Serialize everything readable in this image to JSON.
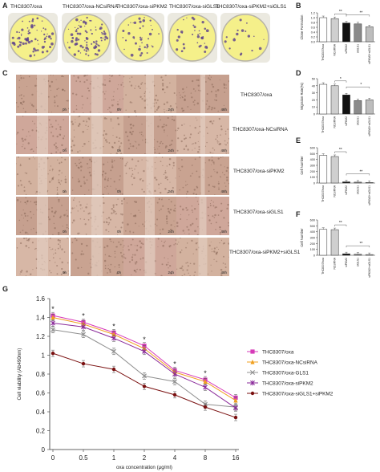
{
  "panel_letters": {
    "A": "A",
    "B": "B",
    "C": "C",
    "D": "D",
    "E": "E",
    "F": "F",
    "G": "G"
  },
  "dish_labels": [
    "THC8307/oxa",
    "THC8307/oxa-NCsiRNA",
    "THC8307/oxa-siPKM2",
    "THC8307/oxa-siGLS1",
    "THC8307/oxa-siPKM2+siGLS1"
  ],
  "scratch_rows": [
    "THC8307/oxa",
    "THC8307/oxa-NCsiRNA",
    "THC8307/oxa-siPKM2",
    "THC8307/oxa-siGLS1",
    "THC8307/oxa-siPKM2+siGLS1"
  ],
  "time_labels": [
    "0h",
    "0h",
    "24h",
    "48h"
  ],
  "colors": {
    "dish_fill": "#f5f08a",
    "dish_dot": "#5a3f8c",
    "scratch_base": "#c9a390",
    "accent": "#d02020"
  },
  "chart_data": [
    {
      "panel": "B",
      "type": "bar",
      "ylabel": "Clone Formation",
      "categories": [
        "THC8307/oxa",
        "NCsiRNA",
        "siPKM2",
        "siGLS1",
        "siPKM2+siGLS1"
      ],
      "values": [
        1.0,
        0.96,
        0.78,
        0.74,
        0.62
      ],
      "ylim": [
        0,
        1.2
      ],
      "yticks": [
        "0.0",
        "0.2",
        "0.4",
        "0.6",
        "0.8",
        "1.0",
        "1.2"
      ],
      "significance": [
        "**",
        "**"
      ]
    },
    {
      "panel": "D",
      "type": "bar",
      "ylabel": "Migration Rate(%)",
      "categories": [
        "THC8307/oxa",
        "NCsiRNA",
        "siPKM2",
        "siGLS1",
        "siPKM2+siGLS1"
      ],
      "values": [
        42,
        40,
        27,
        19,
        20
      ],
      "ylim": [
        0,
        50
      ],
      "yticks": [
        "0",
        "10",
        "20",
        "30",
        "40",
        "50"
      ],
      "significance": [
        "*",
        "*"
      ]
    },
    {
      "panel": "E",
      "type": "bar",
      "ylabel": "Cell Number",
      "categories": [
        "THC8307/oxa",
        "NCsiRNA",
        "siPKM2",
        "siGLS1",
        "siPKM2+siGLS1"
      ],
      "values": [
        470,
        450,
        20,
        15,
        10
      ],
      "ylim": [
        0,
        600
      ],
      "yticks": [
        "0",
        "100",
        "200",
        "300",
        "400",
        "500",
        "600"
      ],
      "significance": [
        "**",
        "**"
      ]
    },
    {
      "panel": "F",
      "type": "bar",
      "ylabel": "Cell Number",
      "categories": [
        "THC8307/oxa",
        "NCsiRNA",
        "siPKM2",
        "siGLS1",
        "siPKM2+siGLS1"
      ],
      "values": [
        440,
        435,
        25,
        18,
        12
      ],
      "ylim": [
        0,
        600
      ],
      "yticks": [
        "0",
        "100",
        "200",
        "300",
        "400",
        "500",
        "600"
      ],
      "significance": [
        "**",
        "**"
      ]
    },
    {
      "panel": "G",
      "type": "line",
      "xlabel": "oxa concentration (μg/ml)",
      "ylabel": "Cell viability (Ab490nm)",
      "x": [
        "0",
        "0.5",
        "1",
        "2",
        "4",
        "8",
        "16"
      ],
      "ylim": [
        0,
        1.6
      ],
      "yticks": [
        "0",
        "0.2",
        "0.4",
        "0.6",
        "0.8",
        "1",
        "1.2",
        "1.4",
        "1.6"
      ],
      "annotations": [
        "*",
        "*",
        "*",
        "*",
        "*",
        "*"
      ],
      "series": [
        {
          "name": "THC8307/oxa",
          "color": "#d63ab8",
          "marker": "square",
          "values": [
            1.42,
            1.35,
            1.24,
            1.1,
            0.84,
            0.74,
            0.55
          ]
        },
        {
          "name": "THC8307/oxa-NCsiRNA",
          "color": "#f0a020",
          "marker": "triangle",
          "values": [
            1.4,
            1.33,
            1.22,
            1.07,
            0.82,
            0.72,
            0.52
          ]
        },
        {
          "name": "THC8307/oxa-GLS1",
          "color": "#909090",
          "marker": "x",
          "values": [
            1.27,
            1.22,
            1.04,
            0.78,
            0.72,
            0.48,
            0.45
          ]
        },
        {
          "name": "THC8307/oxa-siPKM2",
          "color": "#8a2a9a",
          "marker": "star",
          "values": [
            1.34,
            1.3,
            1.18,
            1.04,
            0.8,
            0.66,
            0.44
          ]
        },
        {
          "name": "THC8307/oxa-siGLS1+siPKM2",
          "color": "#7a1010",
          "marker": "circle",
          "values": [
            1.02,
            0.91,
            0.85,
            0.67,
            0.58,
            0.45,
            0.34
          ]
        }
      ]
    }
  ]
}
